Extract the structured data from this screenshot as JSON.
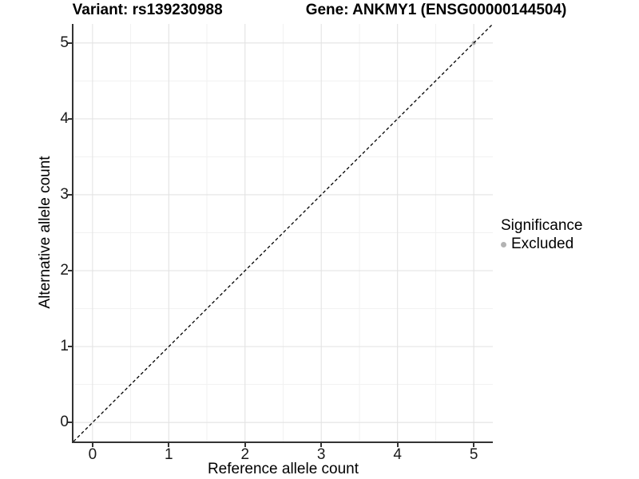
{
  "title": {
    "variant": "Variant: rs139230988",
    "gene": "Gene: ANKMY1 (ENSG00000144504)"
  },
  "axes": {
    "x": {
      "label": "Reference allele count"
    },
    "y": {
      "label": "Alternative allele count"
    }
  },
  "legend": {
    "title": "Significance",
    "items": [
      {
        "label": "Excluded",
        "color": "#b3b3b3"
      }
    ]
  },
  "colors": {
    "background": "#ffffff",
    "axis_line": "#333333",
    "tick_text": "#1a1a1a",
    "grid_major": "#e3e3e3",
    "grid_minor": "#f1f1f1",
    "dashed_line": "#000000",
    "point": "#b3b3b3"
  },
  "chart_data": {
    "type": "scatter",
    "title": "Variant: rs139230988   Gene: ANKMY1 (ENSG00000144504)",
    "xlabel": "Reference allele count",
    "ylabel": "Alternative allele count",
    "xlim": [
      -0.25,
      5.25
    ],
    "ylim": [
      -0.25,
      5.25
    ],
    "x_ticks": [
      0,
      1,
      2,
      3,
      4,
      5
    ],
    "y_ticks": [
      0,
      1,
      2,
      3,
      4,
      5
    ],
    "grid": true,
    "legend_position": "right",
    "series": [
      {
        "name": "Excluded",
        "color": "#b3b3b3",
        "points": [
          [
            5,
            5
          ]
        ]
      }
    ],
    "reference_line": {
      "style": "dashed",
      "slope": 1,
      "intercept": 0,
      "from": [
        -0.25,
        -0.25
      ],
      "to": [
        5.25,
        5.25
      ]
    }
  }
}
